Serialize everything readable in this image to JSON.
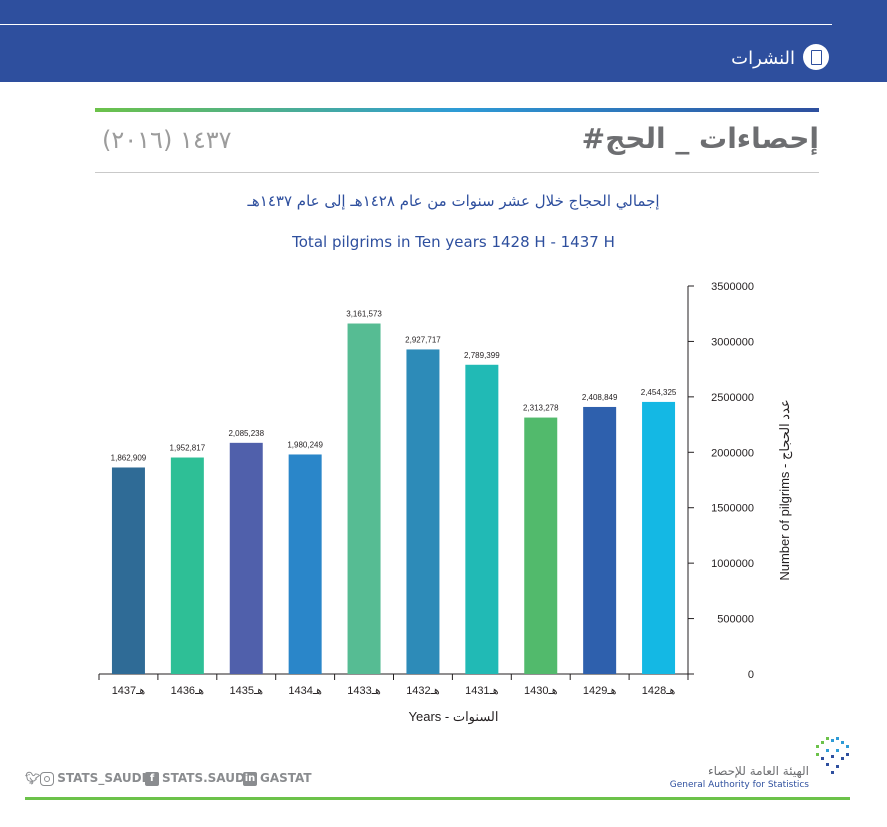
{
  "header": {
    "section_label": "النشرات"
  },
  "title_block": {
    "hashtag_title": "#إحصاءات _ الحج",
    "year_label": "١٤٣٧ (٢٠١٦)"
  },
  "chart_data": {
    "type": "bar",
    "title_ar": "إجمالي الحجاج خلال عشر سنوات من عام ١٤٢٨هـ إلى عام ١٤٣٧هـ",
    "title_en": "Total pilgrims in Ten years 1428 H - 1437 H",
    "xlabel": "Years - السنوات",
    "ylabel": "Number of pilgrims - عدد الحجاج",
    "categories": [
      "1437هـ",
      "1436هـ",
      "1435هـ",
      "1434هـ",
      "1433هـ",
      "1432هـ",
      "1431هـ",
      "1430هـ",
      "1429هـ",
      "1428هـ"
    ],
    "values": [
      1862909,
      1952817,
      2085238,
      1980249,
      3161573,
      2927717,
      2789399,
      2313278,
      2408849,
      2454325
    ],
    "value_labels": [
      "1,862,909",
      "1,952,817",
      "2,085,238",
      "1,980,249",
      "3,161,573",
      "2,927,717",
      "2,789,399",
      "2,313,278",
      "2,408,849",
      "2,454,325"
    ],
    "colors": [
      "#2f6b96",
      "#2ebf96",
      "#5060ab",
      "#2a86c9",
      "#56bc93",
      "#2d8bb8",
      "#21bab5",
      "#52ba6c",
      "#2e60ad",
      "#14b8e4"
    ],
    "yticks": [
      "0",
      "500000",
      "1000000",
      "1500000",
      "2000000",
      "2500000",
      "3000000",
      "3500000"
    ],
    "ylim": [
      0,
      3500000
    ],
    "axis_side": "right",
    "grid": false
  },
  "footer": {
    "twitter_instagram": "STATS_SAUDI",
    "facebook": "STATS.SAUDI",
    "linkedin": "GASTAT",
    "org_name_ar": "الهيئة العامة للإحصاء",
    "org_name_en": "General Authority for Statistics"
  },
  "icons": [
    "document-icon",
    "twitter-icon",
    "instagram-icon",
    "facebook-icon",
    "linkedin-icon",
    "gastat-logo-icon"
  ]
}
